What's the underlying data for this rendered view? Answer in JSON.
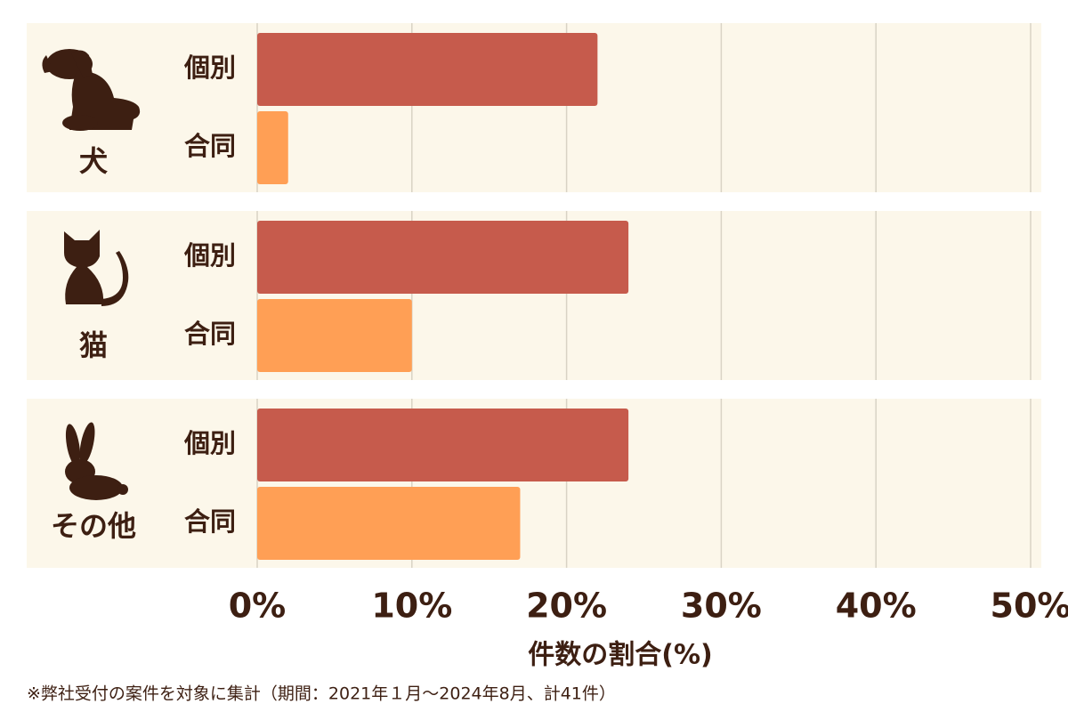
{
  "chart_data": {
    "type": "bar",
    "orientation": "horizontal",
    "categories": [
      "犬",
      "猫",
      "その他"
    ],
    "series": [
      {
        "name": "個別",
        "color": "#c65b4c",
        "values": [
          22,
          24,
          24
        ]
      },
      {
        "name": "合同",
        "color": "#ff9f55",
        "values": [
          2,
          10,
          17
        ]
      }
    ],
    "xlim": [
      0,
      50
    ],
    "xticks": [
      {
        "value": 0,
        "label": "0%"
      },
      {
        "value": 10,
        "label": "10%"
      },
      {
        "value": 20,
        "label": "20%"
      },
      {
        "value": 30,
        "label": "30%"
      },
      {
        "value": 40,
        "label": "40%"
      },
      {
        "value": 50,
        "label": "50%"
      }
    ],
    "xlabel": "件数の割合(%)",
    "grid": true,
    "footnote": "※弊社受付の案件を対象に集計（期間：2021年１月～2024年8月、計41件）"
  }
}
